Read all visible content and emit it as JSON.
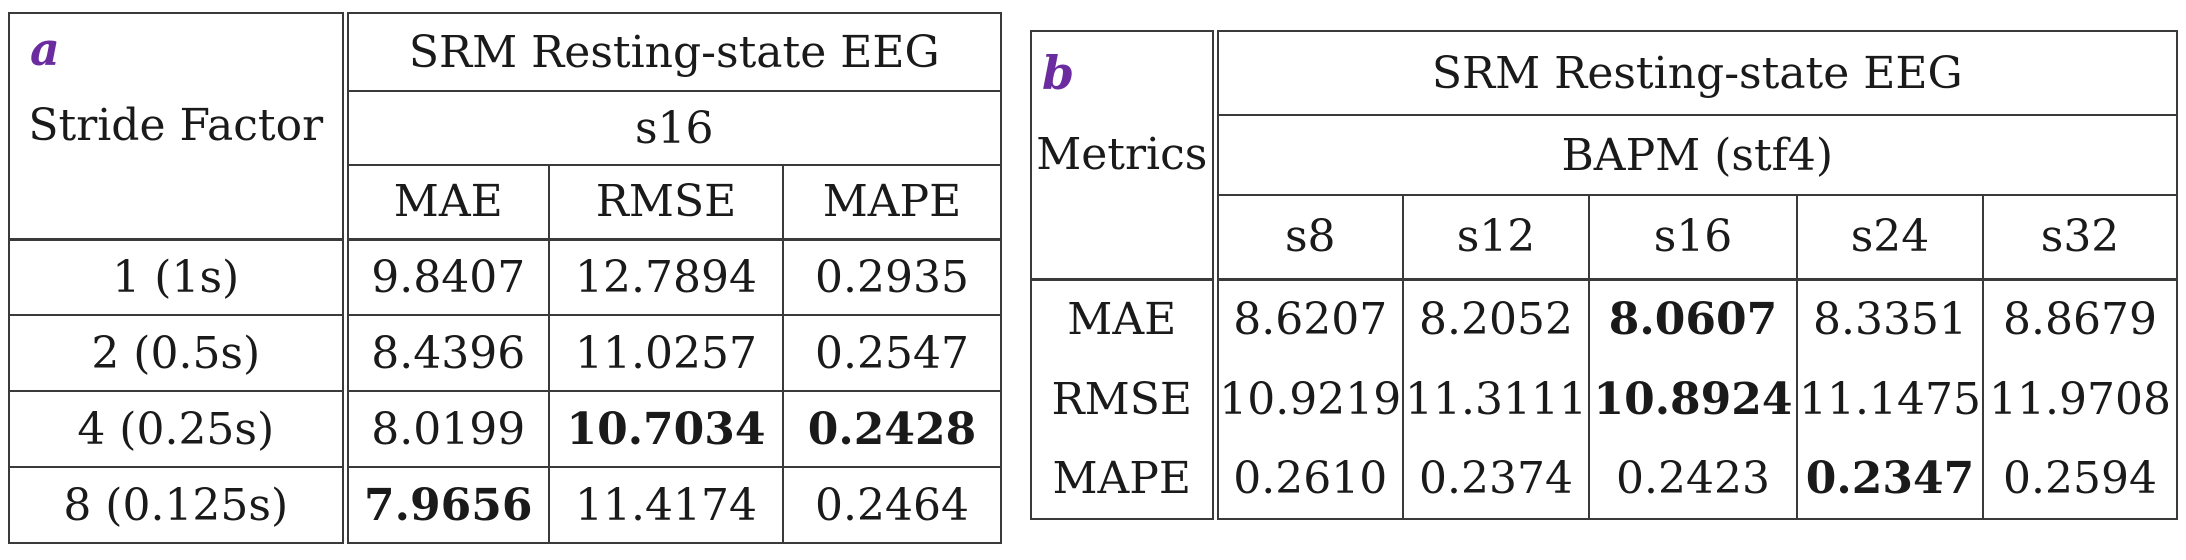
{
  "panel_a": {
    "label": "a",
    "row_header": "Stride Factor",
    "title": "SRM Resting-state EEG",
    "subtitle": "s16",
    "columns": [
      "MAE",
      "RMSE",
      "MAPE"
    ],
    "rows": [
      {
        "label": "1 (1s)",
        "values": [
          "9.8407",
          "12.7894",
          "0.2935"
        ],
        "bold": [
          false,
          false,
          false
        ]
      },
      {
        "label": "2 (0.5s)",
        "values": [
          "8.4396",
          "11.0257",
          "0.2547"
        ],
        "bold": [
          false,
          false,
          false
        ]
      },
      {
        "label": "4 (0.25s)",
        "values": [
          "8.0199",
          "10.7034",
          "0.2428"
        ],
        "bold": [
          false,
          true,
          true
        ]
      },
      {
        "label": "8 (0.125s)",
        "values": [
          "7.9656",
          "11.4174",
          "0.2464"
        ],
        "bold": [
          true,
          false,
          false
        ]
      }
    ]
  },
  "panel_b": {
    "label": "b",
    "row_header": "Metrics",
    "title": "SRM Resting-state EEG",
    "subtitle": "BAPM (stf4)",
    "columns": [
      "s8",
      "s12",
      "s16",
      "s24",
      "s32"
    ],
    "rows": [
      {
        "label": "MAE",
        "values": [
          "8.6207",
          "8.2052",
          "8.0607",
          "8.3351",
          "8.8679"
        ],
        "bold": [
          false,
          false,
          true,
          false,
          false
        ]
      },
      {
        "label": "RMSE",
        "values": [
          "10.9219",
          "11.3111",
          "10.8924",
          "11.1475",
          "11.9708"
        ],
        "bold": [
          false,
          false,
          true,
          false,
          false
        ]
      },
      {
        "label": "MAPE",
        "values": [
          "0.2610",
          "0.2374",
          "0.2423",
          "0.2347",
          "0.2594"
        ],
        "bold": [
          false,
          false,
          false,
          true,
          false
        ]
      }
    ]
  },
  "colors": {
    "panel_label": "#6a2c9e",
    "border": "#3a3a3a",
    "text": "#1a1a1a"
  }
}
